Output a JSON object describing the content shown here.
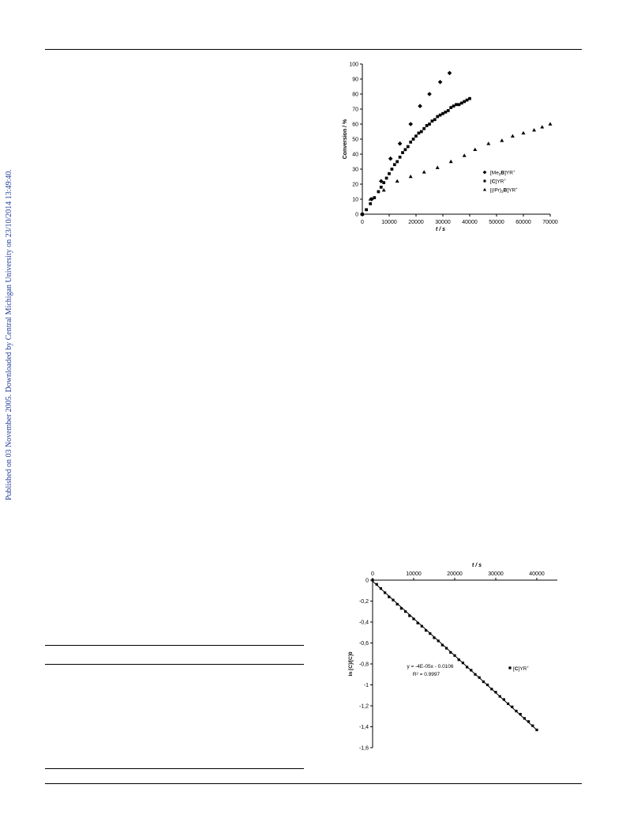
{
  "sidebar": {
    "text": "Published on 03 November 2005. Downloaded by Central Michigan University on 23/10/2014 13:49:40.",
    "color": "#1f3d99"
  },
  "chart_data": [
    {
      "type": "scatter",
      "title": "",
      "xlabel": "t / s",
      "ylabel": "Conversion / %",
      "xlim": [
        0,
        70000
      ],
      "ylim": [
        0,
        100
      ],
      "xticks": [
        0,
        10000,
        20000,
        30000,
        40000,
        50000,
        60000,
        70000
      ],
      "yticks": [
        0,
        10,
        20,
        30,
        40,
        50,
        60,
        70,
        80,
        90,
        100
      ],
      "grid": false,
      "legend_position": "right",
      "series": [
        {
          "name": "[Me2B]YR+",
          "marker": "diamond",
          "points": [
            [
              0,
              0
            ],
            [
              3500,
              10
            ],
            [
              7000,
              22
            ],
            [
              10500,
              37
            ],
            [
              14000,
              47
            ],
            [
              18000,
              60
            ],
            [
              21500,
              72
            ],
            [
              25000,
              80
            ],
            [
              29000,
              88
            ],
            [
              32500,
              94
            ]
          ]
        },
        {
          "name": "[C]YR+",
          "marker": "square",
          "points": [
            [
              0,
              0
            ],
            [
              1500,
              3
            ],
            [
              3000,
              7
            ],
            [
              4500,
              11
            ],
            [
              6000,
              15
            ],
            [
              7000,
              18
            ],
            [
              8000,
              21
            ],
            [
              9000,
              24
            ],
            [
              10000,
              27
            ],
            [
              11000,
              30
            ],
            [
              12000,
              33
            ],
            [
              13000,
              35
            ],
            [
              14000,
              38
            ],
            [
              15000,
              41
            ],
            [
              16000,
              43
            ],
            [
              17000,
              45
            ],
            [
              18000,
              48
            ],
            [
              19000,
              50
            ],
            [
              20000,
              52
            ],
            [
              21000,
              54
            ],
            [
              22000,
              55
            ],
            [
              23000,
              57
            ],
            [
              24000,
              59
            ],
            [
              25000,
              60
            ],
            [
              26000,
              62
            ],
            [
              27000,
              63
            ],
            [
              28000,
              65
            ],
            [
              29000,
              66
            ],
            [
              30000,
              67
            ],
            [
              31000,
              68
            ],
            [
              32000,
              69
            ],
            [
              33000,
              71
            ],
            [
              34000,
              72
            ],
            [
              35000,
              73
            ],
            [
              36000,
              73
            ],
            [
              37000,
              74
            ],
            [
              38000,
              75
            ],
            [
              39000,
              76
            ],
            [
              40000,
              77
            ]
          ]
        },
        {
          "name": "[(iPr)2B]YR+",
          "marker": "triangle",
          "points": [
            [
              0,
              0
            ],
            [
              3000,
              10
            ],
            [
              8000,
              16
            ],
            [
              13000,
              22
            ],
            [
              18000,
              25
            ],
            [
              23000,
              28
            ],
            [
              28000,
              31
            ],
            [
              33000,
              35
            ],
            [
              38000,
              39
            ],
            [
              42000,
              43
            ],
            [
              47000,
              47
            ],
            [
              52000,
              49
            ],
            [
              56000,
              52
            ],
            [
              60000,
              54
            ],
            [
              64000,
              56
            ],
            [
              67000,
              58
            ],
            [
              70000,
              60
            ]
          ]
        }
      ]
    },
    {
      "type": "scatter",
      "title": "",
      "xlabel": "t / s",
      "ylabel": "ln [C]/[C]0",
      "xlim": [
        0,
        45000
      ],
      "ylim": [
        -1.6,
        0
      ],
      "xticks": [
        0,
        10000,
        20000,
        30000,
        40000
      ],
      "yticks": [
        0,
        -0.2,
        -0.4,
        -0.6,
        -0.8,
        -1,
        -1.2,
        -1.4,
        -1.6
      ],
      "ytick_labels": [
        "0",
        "-0,2",
        "-0,4",
        "-0,6",
        "-0,8",
        "-1",
        "-1,2",
        "-1,4",
        "-1,6"
      ],
      "x_axis_position": "top",
      "grid": false,
      "legend_position": "right",
      "annotation": "y = -4E-05x - 0.0106",
      "annotation2": "R² = 0.9997",
      "series": [
        {
          "name": "[C]YR+",
          "marker": "square",
          "points": [
            [
              0,
              0
            ],
            [
              1000,
              -0.04
            ],
            [
              2000,
              -0.08
            ],
            [
              3000,
              -0.12
            ],
            [
              4000,
              -0.16
            ],
            [
              5000,
              -0.19
            ],
            [
              6000,
              -0.23
            ],
            [
              7000,
              -0.27
            ],
            [
              8000,
              -0.3
            ],
            [
              9000,
              -0.34
            ],
            [
              10000,
              -0.37
            ],
            [
              11000,
              -0.41
            ],
            [
              12000,
              -0.44
            ],
            [
              13000,
              -0.48
            ],
            [
              14000,
              -0.51
            ],
            [
              15000,
              -0.55
            ],
            [
              16000,
              -0.58
            ],
            [
              17000,
              -0.62
            ],
            [
              18000,
              -0.65
            ],
            [
              19000,
              -0.69
            ],
            [
              20000,
              -0.72
            ],
            [
              21000,
              -0.76
            ],
            [
              22000,
              -0.79
            ],
            [
              23000,
              -0.83
            ],
            [
              24000,
              -0.86
            ],
            [
              25000,
              -0.9
            ],
            [
              26000,
              -0.93
            ],
            [
              27000,
              -0.97
            ],
            [
              28000,
              -1.0
            ],
            [
              29000,
              -1.04
            ],
            [
              30000,
              -1.07
            ],
            [
              31000,
              -1.11
            ],
            [
              32000,
              -1.14
            ],
            [
              33000,
              -1.18
            ],
            [
              34000,
              -1.21
            ],
            [
              35000,
              -1.25
            ],
            [
              36000,
              -1.28
            ],
            [
              37000,
              -1.32
            ],
            [
              38000,
              -1.35
            ],
            [
              39000,
              -1.39
            ],
            [
              40000,
              -1.43
            ]
          ]
        }
      ],
      "fit_line": [
        [
          0,
          -0.0106
        ],
        [
          40000,
          -1.43
        ]
      ]
    }
  ]
}
